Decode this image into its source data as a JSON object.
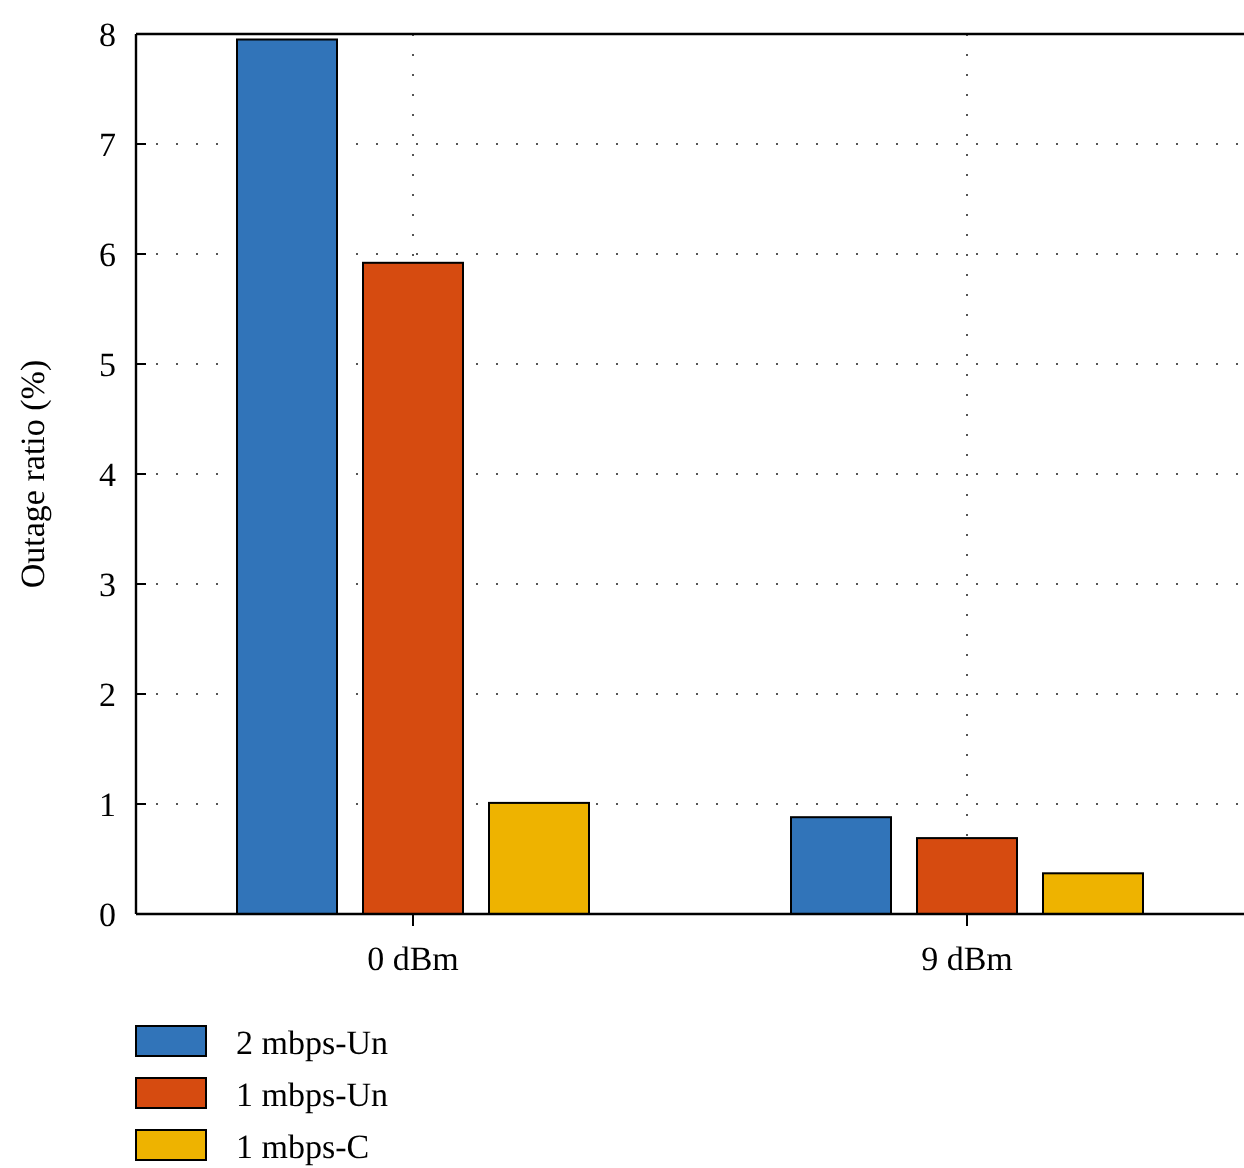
{
  "chart_data": {
    "type": "bar",
    "ylabel": "Outage ratio (%)",
    "categories": [
      "0 dBm",
      "9 dBm"
    ],
    "series": [
      {
        "name": "2 mbps-Un",
        "color": "#3174b9",
        "values": [
          7.95,
          0.88
        ]
      },
      {
        "name": "1 mbps-Un",
        "color": "#d64b10",
        "values": [
          5.92,
          0.69
        ]
      },
      {
        "name": "1 mbps-C",
        "color": "#eeb300",
        "values": [
          1.01,
          0.37
        ]
      }
    ],
    "ylim": [
      0,
      8
    ],
    "yticks": [
      0,
      1,
      2,
      3,
      4,
      5,
      6,
      7,
      8
    ],
    "grid": true,
    "legend": "bottom left"
  }
}
